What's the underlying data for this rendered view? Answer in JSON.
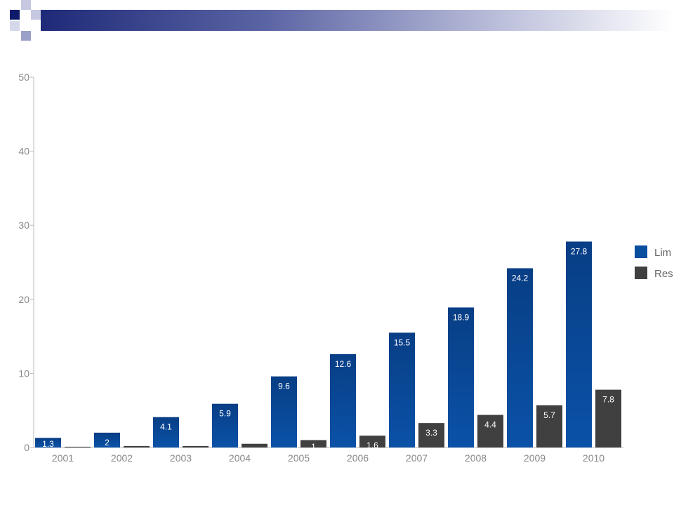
{
  "colors": {
    "series_1": "#0a4ea0",
    "series_1_dark": "#083e85",
    "series_2": "#404040",
    "axis": "#bbbbbb",
    "decor_navy": "#1e2a78",
    "decor_light": "#b5b9d7"
  },
  "chart_data": {
    "type": "bar",
    "title": "",
    "xlabel": "",
    "ylabel": "",
    "ylim": [
      0,
      50
    ],
    "yticks": [
      0,
      10,
      20,
      30,
      40,
      50
    ],
    "grid": false,
    "legend_position": "right",
    "categories": [
      "2001",
      "2002",
      "2003",
      "2004",
      "2005",
      "2006",
      "2007",
      "2008",
      "2009",
      "2010"
    ],
    "series": [
      {
        "name": "Lim",
        "values": [
          1.3,
          2,
          4.1,
          5.9,
          9.6,
          12.6,
          15.5,
          18.9,
          24.2,
          27.8
        ],
        "labels": [
          "1.3",
          "2",
          "4.1",
          "5.9",
          "9.6",
          "12.6",
          "15.5",
          "18.9",
          "24.2",
          "27.8"
        ]
      },
      {
        "name": "Res",
        "values": [
          0.1,
          0.2,
          0.2,
          0.5,
          1,
          1.6,
          3.3,
          4.4,
          5.7,
          7.8
        ],
        "labels": [
          "",
          "",
          "",
          "",
          "1",
          "1.6",
          "3.3",
          "4.4",
          "5.7",
          "7.8"
        ]
      }
    ]
  }
}
